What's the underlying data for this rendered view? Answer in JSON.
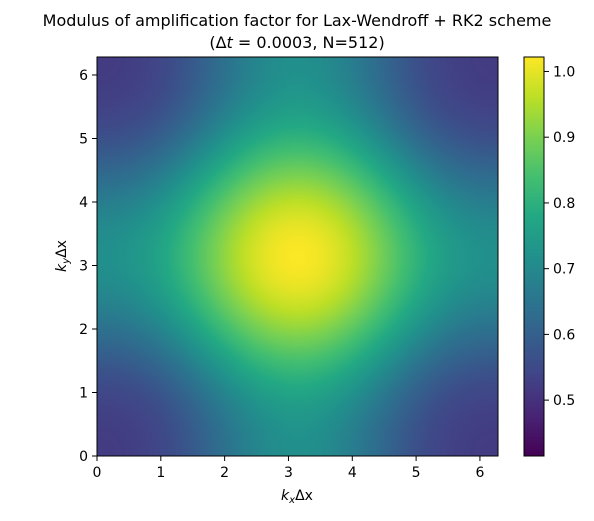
{
  "chart_data": {
    "type": "heatmap",
    "title_line1": "Modulus of amplification factor for Lax-Wendroff + RK2 scheme",
    "title_line2": {
      "prefix": "(",
      "delta": "Δ",
      "var": "t",
      "equals": " = 0.0003, N=512)"
    },
    "xlabel": {
      "k": "k",
      "sub": "x",
      "rest": "Δx"
    },
    "ylabel": {
      "k": "k",
      "sub": "y",
      "rest": "Δx"
    },
    "xlim": [
      0,
      6.2832
    ],
    "ylim": [
      0,
      6.2832
    ],
    "x_ticks": [
      0,
      1,
      2,
      3,
      4,
      5,
      6
    ],
    "y_ticks": [
      0,
      1,
      2,
      3,
      4,
      5,
      6
    ],
    "x_tick_labels": [
      "0",
      "1",
      "2",
      "3",
      "4",
      "5",
      "6"
    ],
    "y_tick_labels": [
      "0",
      "1",
      "2",
      "3",
      "4",
      "5",
      "6"
    ],
    "colorbar": {
      "range": [
        0.415,
        1.022
      ],
      "ticks": [
        0.5,
        0.6,
        0.7,
        0.8,
        0.9,
        1.0
      ],
      "tick_labels": [
        "0.5",
        "0.6",
        "0.7",
        "0.8",
        "0.9",
        "1.0"
      ]
    },
    "colormap": "viridis",
    "field_description_values": {
      "max_value_at_center": 1.02,
      "center": [
        3.14,
        3.14
      ],
      "min_value_at_quadrant_centers": 0.415,
      "min_locations": [
        [
          0.8,
          0.8
        ],
        [
          5.45,
          0.8
        ],
        [
          0.8,
          5.45
        ],
        [
          5.45,
          5.45
        ]
      ],
      "value_at_corners": 0.45,
      "value_along_center_lines": 0.68
    }
  }
}
